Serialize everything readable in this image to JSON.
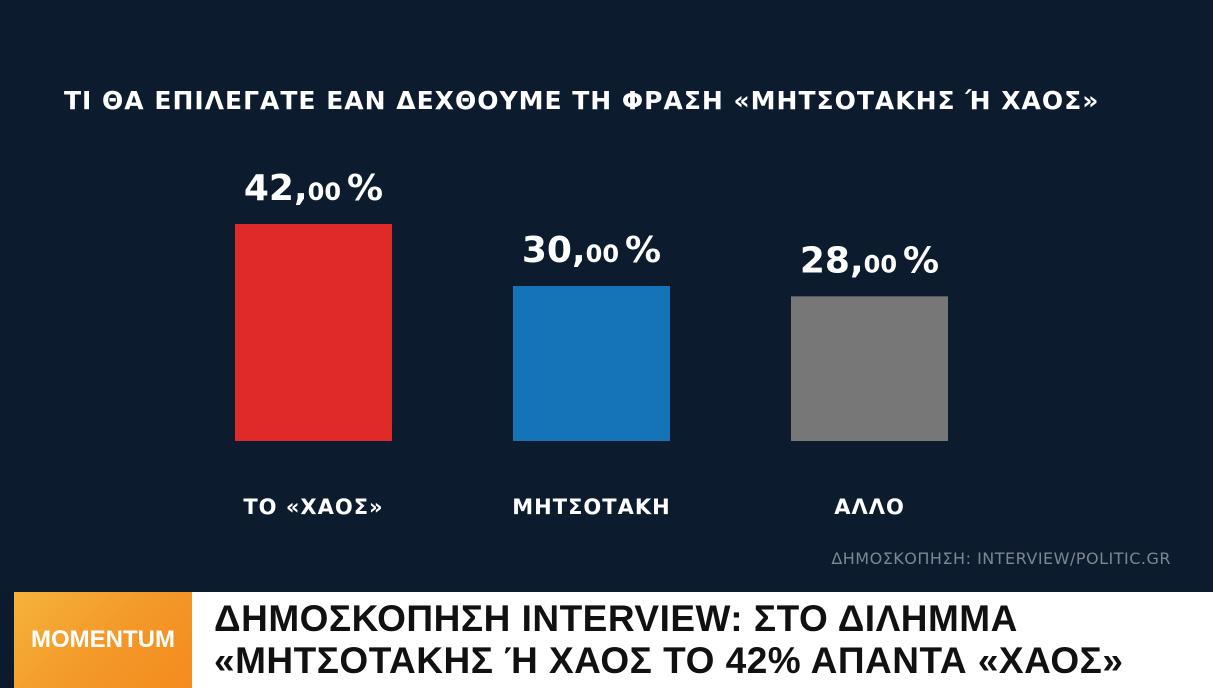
{
  "chart_data": {
    "type": "bar",
    "title": "ΤΙ ΘΑ ΕΠΙΛΕΓΑΤΕ ΕΑΝ ΔΕΧΘΟΥΜΕ ΤΗ ΦΡΑΣΗ «ΜΗΤΣΟΤΑΚΗΣ Ή ΧΑΟΣ»",
    "categories": [
      "ΤΟ «ΧΑΟΣ»",
      "ΜΗΤΣΟΤΑΚΗ",
      "ΑΛΛΟ"
    ],
    "values": [
      42.0,
      30.0,
      28.0
    ],
    "value_labels": [
      {
        "main": "42,",
        "decimals": "00",
        "unit": "%"
      },
      {
        "main": "30,",
        "decimals": "00",
        "unit": "%"
      },
      {
        "main": "28,",
        "decimals": "00",
        "unit": "%"
      }
    ],
    "colors": [
      "#e02a28",
      "#1574b8",
      "#777777"
    ],
    "ylim": [
      0,
      42
    ],
    "grid": false,
    "legend": "none",
    "xlabel": "",
    "ylabel": ""
  },
  "source": "ΔΗΜΟΣΚΟΠΗΣΗ: INTERVIEW/POLITIC.GR",
  "ticker": {
    "brand": "MOMENTUM",
    "brand_colors": [
      "#f6b23c",
      "#f58b1f"
    ],
    "headline_line1": "ΔΗΜΟΣΚΟΠΗΣΗ INTERVIEW: ΣΤΟ ΔΙΛΗΜΜΑ",
    "headline_line2": "«ΜΗΤΣΟΤΑΚΗΣ Ή ΧΑΟΣ ΤΟ 42% ΑΠΑΝΤΑ «ΧΑΟΣ»"
  }
}
